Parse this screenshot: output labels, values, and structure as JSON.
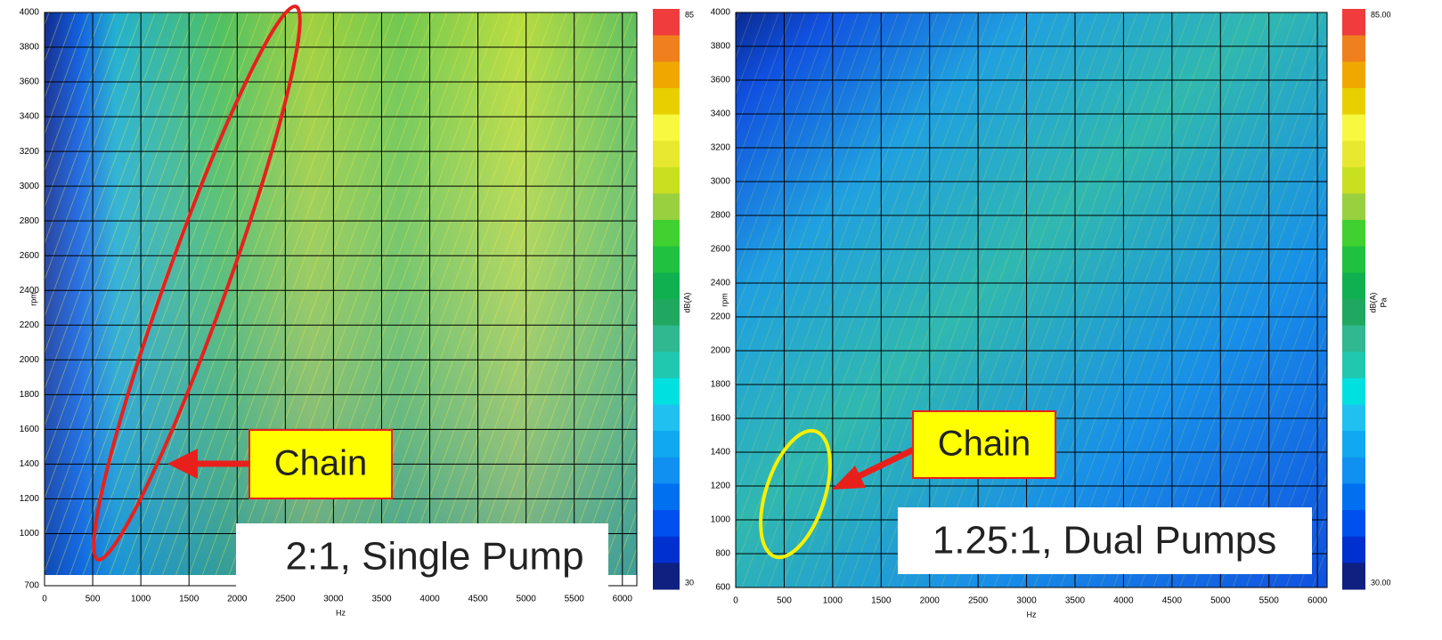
{
  "chart_data": [
    {
      "type": "heatmap",
      "x_label": "Hz",
      "y_label": "rpm",
      "xlim": [
        0,
        6150
      ],
      "xticks": [
        0,
        500,
        1000,
        1500,
        2000,
        2500,
        3000,
        3500,
        4000,
        4500,
        5000,
        5500,
        6000
      ],
      "ylim": [
        700,
        4000
      ],
      "yticks": [
        700,
        1000,
        1200,
        1400,
        1600,
        1800,
        2000,
        2200,
        2400,
        2600,
        2800,
        3000,
        3200,
        3400,
        3600,
        3800,
        4000
      ],
      "grid": true,
      "colorbar": {
        "label": "dB(A)",
        "lim": [
          30,
          85
        ],
        "ticks": [
          30,
          85
        ]
      },
      "annotations": [
        "Chain",
        "2:1, Single Pump"
      ]
    },
    {
      "type": "heatmap",
      "x_label": "Hz",
      "y_label": "rpm",
      "xlim": [
        0,
        6100
      ],
      "xticks": [
        0,
        500,
        1000,
        1500,
        2000,
        2500,
        3000,
        3500,
        4000,
        4500,
        5000,
        5500,
        6000
      ],
      "ylim": [
        600,
        4000
      ],
      "yticks": [
        600,
        800,
        1000,
        1200,
        1400,
        1600,
        1800,
        2000,
        2200,
        2400,
        2600,
        2800,
        3000,
        3200,
        3400,
        3600,
        3800,
        4000
      ],
      "grid": true,
      "colorbar": {
        "label": "dB(A)",
        "unit": "Pa",
        "lim": [
          30,
          85
        ],
        "ticks": [
          {
            "value": 30,
            "label": "30.00"
          },
          {
            "value": 85,
            "label": "85.00"
          }
        ]
      },
      "annotations": [
        "Chain",
        "1.25:1, Dual Pumps"
      ]
    }
  ],
  "colorscale": [
    "#f03c3c",
    "#f07f1e",
    "#f0a800",
    "#e8d000",
    "#f8f840",
    "#e8e830",
    "#c8e020",
    "#98d040",
    "#40d030",
    "#20c040",
    "#10b050",
    "#20a860",
    "#30b890",
    "#20c8b0",
    "#00e0e0",
    "#20c0f0",
    "#10a8f0",
    "#1090f0",
    "#0070f0",
    "#0050f0",
    "#0030d0",
    "#102080"
  ]
}
